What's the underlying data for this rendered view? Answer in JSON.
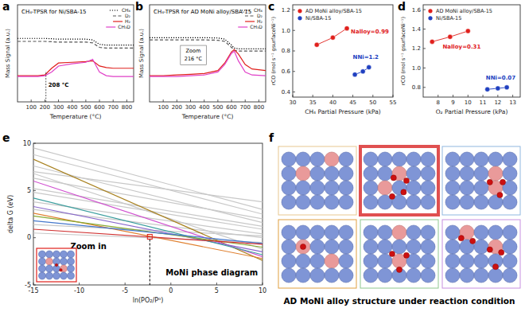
{
  "chart_data": [
    {
      "panel": "a",
      "type": "line",
      "title": "CH₄-TPSR for Ni/SBA-15",
      "x_label": "Temperature (°C)",
      "y_label": "Mass Signal (a.u.)",
      "xlim": [
        0,
        850
      ],
      "xticks": [
        100,
        200,
        300,
        400,
        500,
        600,
        700,
        800
      ],
      "ylim": [
        0,
        13
      ],
      "tick_labels": "x",
      "legend": "upper right",
      "x": [
        0,
        100,
        150,
        200,
        250,
        300,
        400,
        500,
        550,
        600,
        650,
        700,
        850
      ],
      "series": [
        {
          "name": "CH₄",
          "color": "#000000",
          "line_style": "dotted",
          "values": [
            8.5,
            8.5,
            8.5,
            8.5,
            8.45,
            8.4,
            8.4,
            8.4,
            8.3,
            7.7,
            7.6,
            7.6,
            7.6
          ]
        },
        {
          "name": "D₂",
          "color": "#555555",
          "line_style": "dashed",
          "values": [
            8.1,
            8.1,
            8.1,
            8.1,
            8.05,
            8.0,
            8.0,
            8.0,
            7.9,
            7.3,
            7.2,
            7.2,
            7.2
          ]
        },
        {
          "name": "H₂",
          "color": "#e0201c",
          "line_style": "solid",
          "values": [
            3.5,
            3.5,
            3.5,
            3.6,
            4.5,
            5.2,
            5.3,
            5.4,
            5.5,
            4.8,
            4.6,
            4.5,
            4.5
          ]
        },
        {
          "name": "CH₃D",
          "color": "#e040c8",
          "line_style": "solid",
          "values": [
            3.4,
            3.4,
            3.4,
            3.5,
            4.0,
            4.8,
            5.1,
            5.3,
            5.7,
            4.0,
            3.5,
            3.4,
            3.4
          ]
        }
      ],
      "annotations": [
        {
          "text": "208 °C",
          "x": 208,
          "y": 2.0
        }
      ]
    },
    {
      "panel": "b",
      "type": "line",
      "title": "CH₄-TPSR for AD MoNi alloy/SBA-15",
      "x_label": "Temperature (°C)",
      "y_label": "Mass Signal (a.u.)",
      "xlim": [
        0,
        850
      ],
      "xticks": [
        100,
        200,
        300,
        400,
        500,
        600,
        700,
        800
      ],
      "ylim": [
        0,
        13
      ],
      "tick_labels": "x",
      "legend": "upper right",
      "x": [
        0,
        100,
        200,
        300,
        400,
        500,
        550,
        600,
        620,
        650,
        700,
        750,
        850
      ],
      "series": [
        {
          "name": "CH₄",
          "color": "#000000",
          "line_style": "dotted",
          "values": [
            8.6,
            8.6,
            8.6,
            8.6,
            8.6,
            8.55,
            8.4,
            7.6,
            7.2,
            7.1,
            7.1,
            7.1,
            7.1
          ]
        },
        {
          "name": "D₂",
          "color": "#555555",
          "line_style": "dashed",
          "values": [
            8.3,
            8.3,
            8.3,
            8.3,
            8.3,
            8.25,
            8.1,
            7.3,
            6.9,
            6.8,
            6.8,
            6.8,
            6.8
          ]
        },
        {
          "name": "H₂",
          "color": "#e0201c",
          "line_style": "solid",
          "values": [
            3.5,
            3.5,
            3.6,
            3.7,
            3.8,
            4.2,
            5.2,
            6.7,
            7.0,
            6.4,
            5.0,
            4.4,
            4.2
          ]
        },
        {
          "name": "CH₃D",
          "color": "#e040c8",
          "line_style": "solid",
          "values": [
            3.4,
            3.4,
            3.4,
            3.5,
            3.6,
            4.0,
            5.0,
            6.5,
            6.8,
            5.5,
            4.0,
            3.6,
            3.5
          ]
        }
      ],
      "annotations": [
        {
          "text": "Zoom",
          "x": 320,
          "y": 6.6
        },
        {
          "text": "216 °C",
          "x": 320,
          "y": 5.5
        }
      ]
    },
    {
      "panel": "c",
      "type": "scatter",
      "x_label": "CH₄ Partial Pressure (kPa)",
      "y_label": "rCO (mol s⁻¹ gsurfaceNi⁻¹)",
      "xlim": [
        30,
        55
      ],
      "xticks": [
        30,
        35,
        40,
        45,
        50,
        55
      ],
      "ylim": [
        0.35,
        1.25
      ],
      "yticks": [
        0.4,
        0.6,
        0.8,
        {
          "value": 1,
          "label": "1.0"
        },
        1.2
      ],
      "legend": "upper left",
      "series": [
        {
          "name": "AD MoNi alloy/SBA-15",
          "color": "#e0201c",
          "marker": "circle",
          "line_style": "solid",
          "x": [
            36,
            40,
            43.5
          ],
          "values": [
            0.86,
            0.93,
            1.02
          ]
        },
        {
          "name": "Ni/SBA-15",
          "color": "#2040c0",
          "marker": "circle",
          "line_style": "solid",
          "x": [
            45.5,
            47.5,
            49
          ],
          "values": [
            0.57,
            0.6,
            0.64
          ]
        }
      ],
      "annotations": [
        {
          "text": "Nalloy=0.99",
          "x": 44.5,
          "y": 0.97
        },
        {
          "text": "NNi=1.2",
          "x": 45,
          "y": 0.72
        }
      ]
    },
    {
      "panel": "d",
      "type": "scatter",
      "x_label": "O₂ Partial Pressure (kPa)",
      "y_label": "rCO (mol s⁻¹ gsurfaceNi⁻¹)",
      "xlim": [
        7,
        13.5
      ],
      "xticks": [
        8,
        9,
        10,
        11,
        12,
        13
      ],
      "ylim": [
        0.7,
        1.65
      ],
      "yticks": [
        0.8,
        {
          "value": 1,
          "label": "1.0"
        },
        1.2,
        1.4,
        1.6
      ],
      "legend": "upper left",
      "series": [
        {
          "name": "AD MoNi alloy/SBA-15",
          "color": "#e0201c",
          "marker": "circle",
          "line_style": "solid",
          "x": [
            7.6,
            8.8,
            10
          ],
          "values": [
            1.27,
            1.32,
            1.38
          ]
        },
        {
          "name": "Ni/SBA-15",
          "color": "#2040c0",
          "marker": "circle",
          "line_style": "solid",
          "x": [
            11.3,
            12,
            12.6
          ],
          "values": [
            0.78,
            0.79,
            0.8
          ]
        }
      ],
      "annotations": [
        {
          "text": "Nalloy=0.31",
          "x": 8.3,
          "y": 1.2
        },
        {
          "text": "NNi=0.07",
          "x": 11.2,
          "y": 0.88
        }
      ]
    },
    {
      "panel": "e",
      "type": "line",
      "x_label": "ln(PO₂/P⁰)",
      "y_label": "delta G (eV)",
      "xlim": [
        -15,
        10
      ],
      "xticks": [
        -15,
        -10,
        -5,
        0,
        5,
        10
      ],
      "ylim": [
        -5,
        10
      ],
      "yticks": [
        -5,
        0,
        5,
        10
      ],
      "x": [
        -15,
        10
      ],
      "series": [
        {
          "color": "#c8c8c8",
          "values": [
            9.5,
            3.0
          ]
        },
        {
          "color": "#c8c8c8",
          "values": [
            8.8,
            2.5
          ]
        },
        {
          "color": "#c8c8c8",
          "values": [
            7.6,
            1.6
          ]
        },
        {
          "color": "#c8c8c8",
          "values": [
            7.0,
            3.8
          ]
        },
        {
          "color": "#c8c8c8",
          "values": [
            6.3,
            2.0
          ]
        },
        {
          "color": "#c8c8c8",
          "values": [
            5.2,
            1.2
          ]
        },
        {
          "color": "#c8c8c8",
          "values": [
            4.8,
            0.9
          ]
        },
        {
          "color": "#c8c8c8",
          "values": [
            3.8,
            0.4
          ]
        },
        {
          "color": "#c8c8c8",
          "values": [
            3.0,
            0.0
          ]
        },
        {
          "color": "#c8c8c8",
          "values": [
            1.4,
            0.2
          ]
        },
        {
          "color": "#c8c8c8",
          "values": [
            0.5,
            -0.5
          ]
        },
        {
          "color": "#c8c8c8",
          "values": [
            6.8,
            -1.2
          ]
        },
        {
          "color": "#a8801e",
          "values": [
            8.3,
            -2.4
          ]
        },
        {
          "color": "#d050d0",
          "values": [
            6.0,
            -2.0
          ]
        },
        {
          "color": "#8866cc",
          "values": [
            3.3,
            -1.5
          ]
        },
        {
          "color": "#3a9e9e",
          "values": [
            4.2,
            -1.8
          ]
        },
        {
          "color": "#e08030",
          "values": [
            2.6,
            -2.2
          ]
        },
        {
          "color": "#88aa33",
          "values": [
            2.3,
            -1.0
          ]
        },
        {
          "color": "#4477cc",
          "values": [
            1.8,
            -0.6
          ]
        },
        {
          "color": "#d03030",
          "values": [
            0.9,
            -0.7
          ]
        }
      ],
      "highlight_point": {
        "x": -2.3,
        "y": 0.1
      },
      "annotations": [
        {
          "text": "Zoom in",
          "x": -9,
          "y": -1.2
        },
        {
          "text": "MoNi phase diagram",
          "x": 9.5,
          "y": -4
        }
      ]
    }
  ],
  "structure_panel": {
    "panel": "f",
    "caption": "AD MoNi alloy structure under reaction condition"
  }
}
